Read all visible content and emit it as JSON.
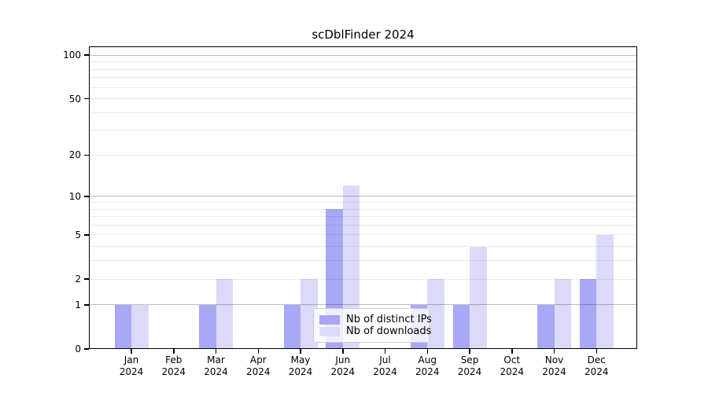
{
  "chart_data": {
    "type": "bar",
    "title": "scDblFinder 2024",
    "categories": [
      "Jan",
      "Feb",
      "Mar",
      "Apr",
      "May",
      "Jun",
      "Jul",
      "Aug",
      "Sep",
      "Oct",
      "Nov",
      "Dec"
    ],
    "year": "2024",
    "series": [
      {
        "name": "Nb of distinct IPs",
        "color": "#a8a8f7",
        "values": [
          1,
          0,
          1,
          0,
          1,
          8,
          0,
          1,
          1,
          0,
          1,
          2
        ]
      },
      {
        "name": "Nb of downloads",
        "color": "#dbdbf9",
        "values": [
          1,
          0,
          2,
          0,
          2,
          12,
          0,
          2,
          4,
          0,
          2,
          5
        ]
      }
    ],
    "xlabel": "",
    "ylabel": "",
    "yscale": "log10(1+x)",
    "ylim": [
      0,
      115
    ],
    "yticks": [
      0,
      1,
      2,
      5,
      10,
      20,
      50,
      100
    ],
    "grid": true,
    "grid_major_values": [
      1,
      10,
      100
    ],
    "grid_minor_values": [
      2,
      3,
      4,
      5,
      6,
      7,
      8,
      9,
      20,
      30,
      40,
      50,
      60,
      70,
      80,
      90
    ],
    "legend_position": "lower center",
    "background_color": "#ffffff",
    "axis_color": "#000000"
  }
}
